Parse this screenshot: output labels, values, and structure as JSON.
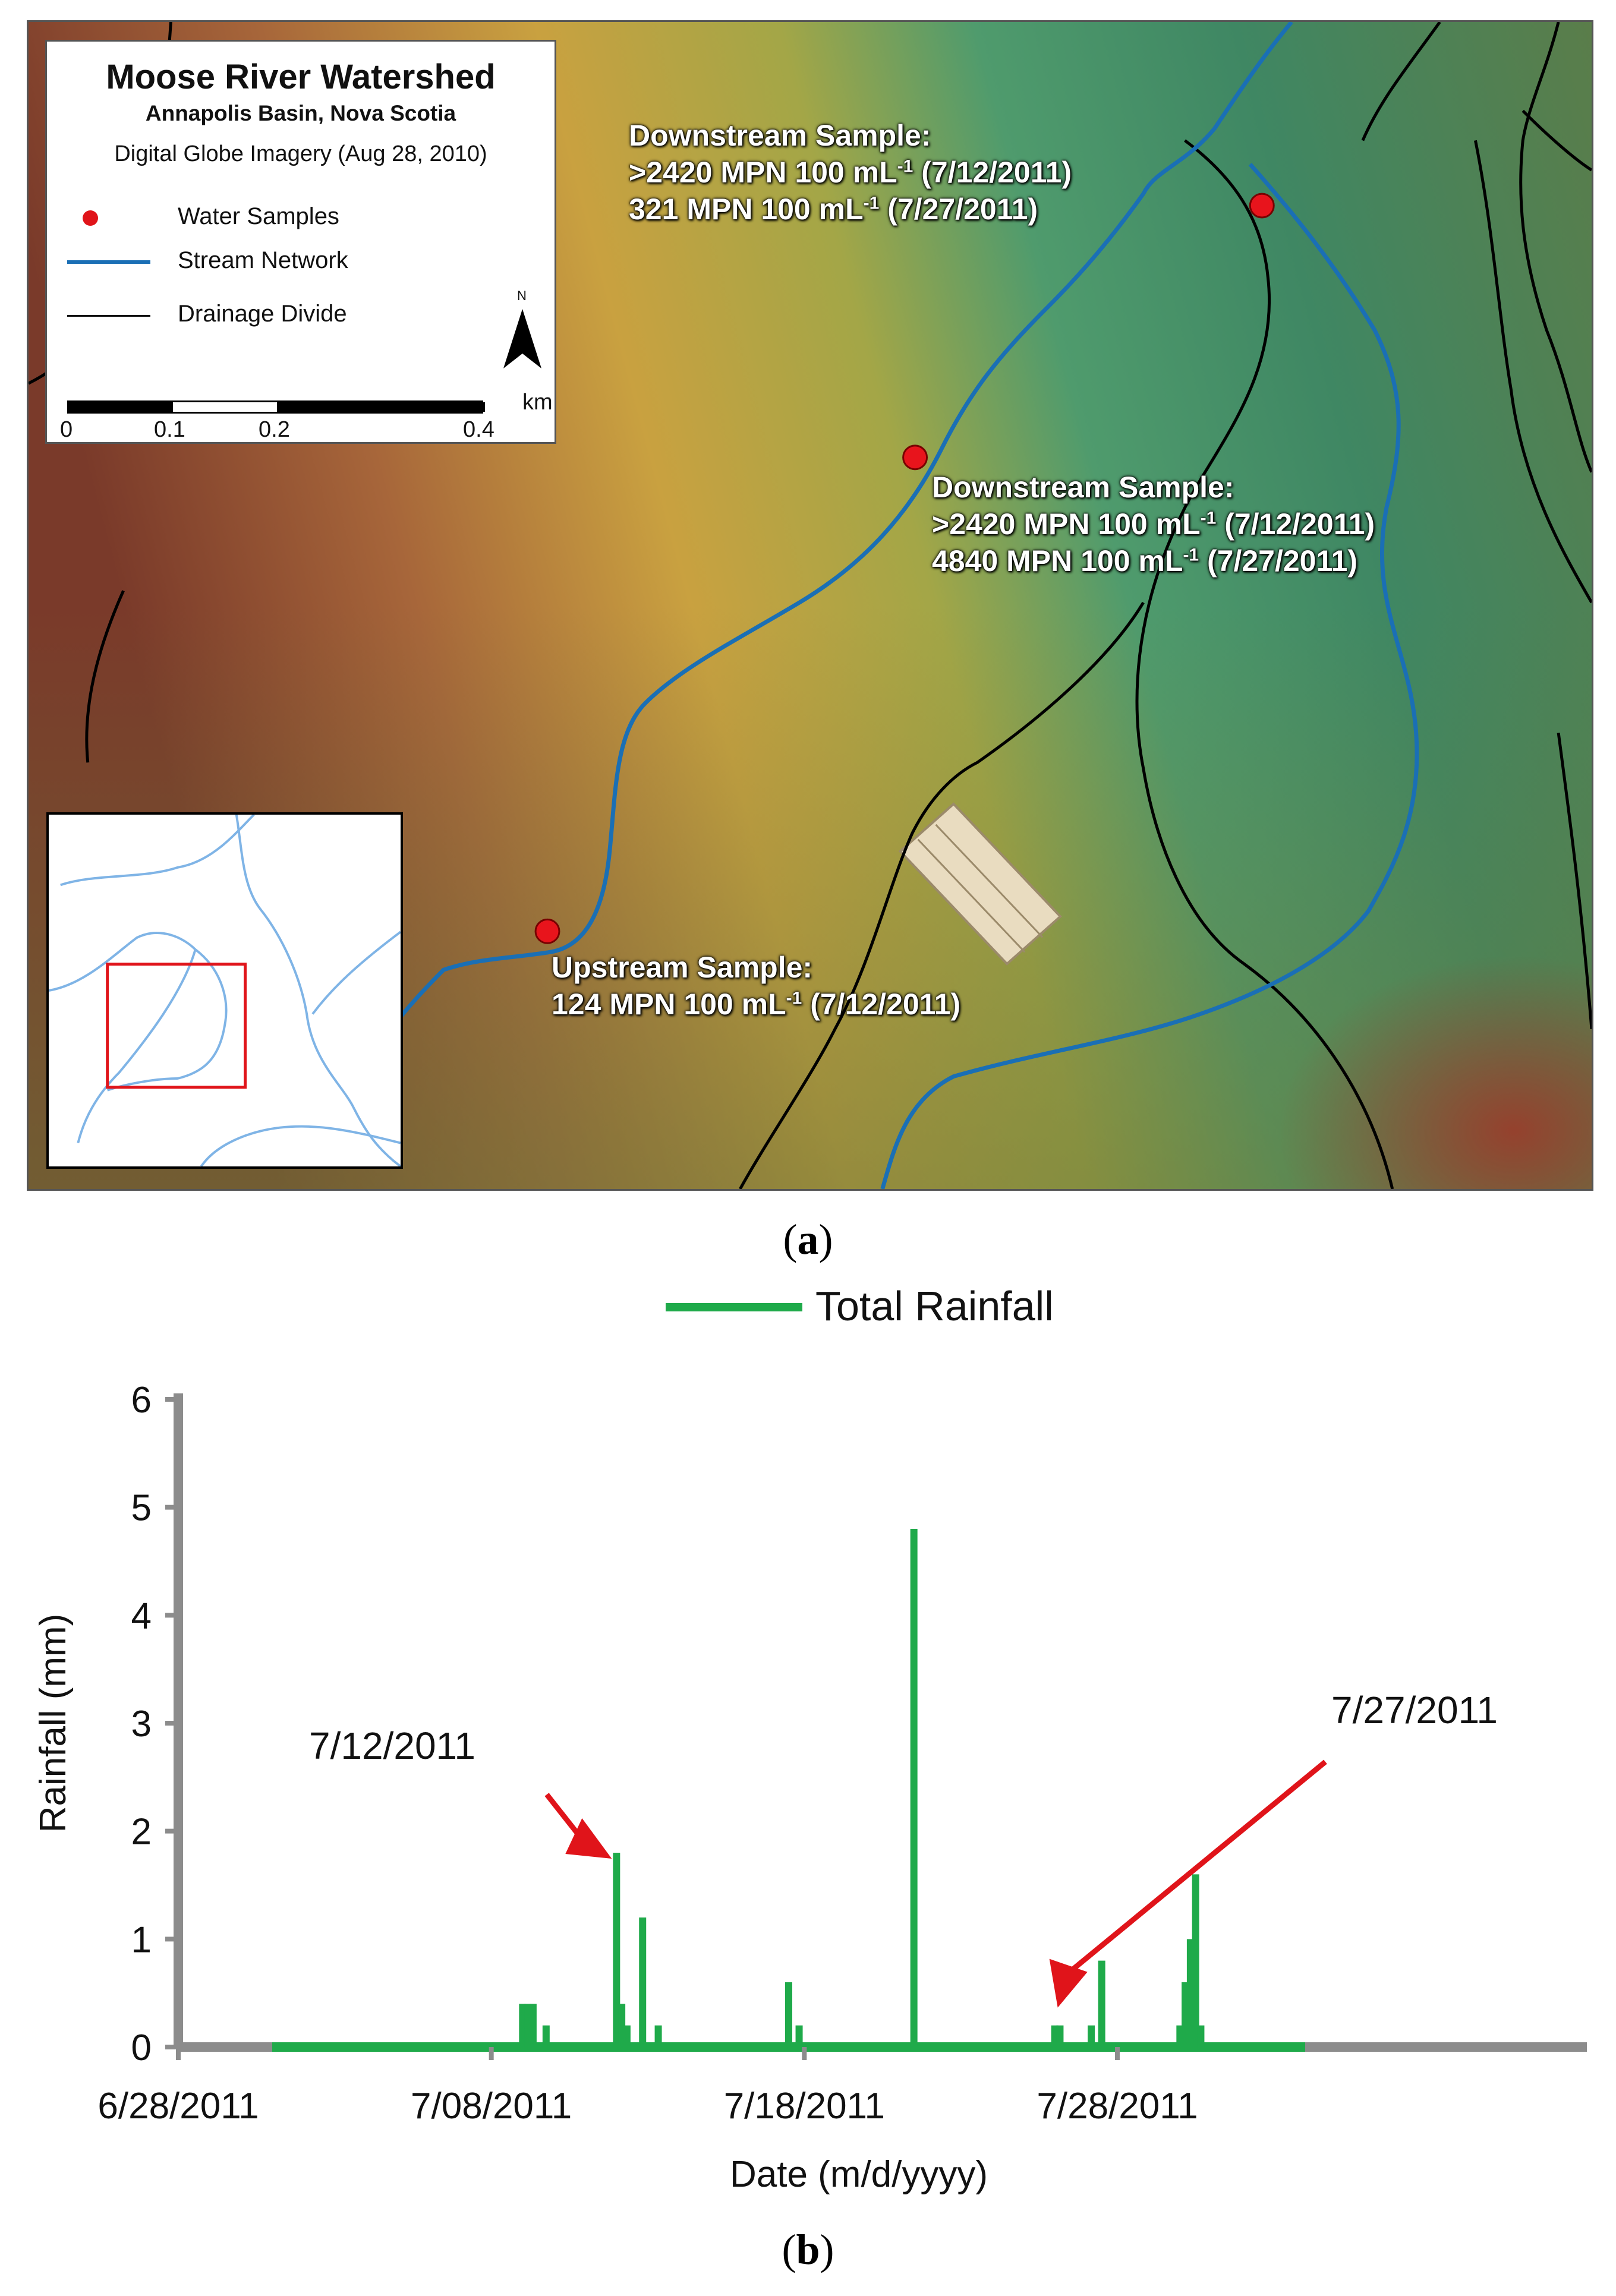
{
  "map": {
    "legend": {
      "title": "Moose River Watershed",
      "subtitle": "Annapolis Basin, Nova Scotia",
      "imagery": "Digital Globe Imagery (Aug 28, 2010)",
      "items": [
        {
          "label": "Water Samples",
          "icon": "red-dot",
          "color": "#e0141a"
        },
        {
          "label": "Stream Network",
          "icon": "blue-line",
          "color": "#1a6fb5"
        },
        {
          "label": "Drainage Divide",
          "icon": "black-line",
          "color": "#000000"
        }
      ],
      "north": "N",
      "scale": {
        "ticks": [
          "0",
          "0.1",
          "0.2",
          "0.4"
        ],
        "unit": "km"
      }
    },
    "annotations": [
      {
        "title": "Downstream Sample:",
        "lines": [
          {
            "value": ">2420 MPN 100 mL",
            "sup": "-1",
            "date": " (7/12/2011)"
          },
          {
            "value": "321 MPN 100 mL",
            "sup": "-1",
            "date": "  (7/27/2011)"
          }
        ]
      },
      {
        "title": "Downstream Sample:",
        "lines": [
          {
            "value": ">2420 MPN 100 mL",
            "sup": "-1",
            "date": " (7/12/2011)"
          },
          {
            "value": "4840 MPN 100 mL",
            "sup": "-1",
            "date": "  (7/27/2011)"
          }
        ]
      },
      {
        "title": "Upstream Sample:",
        "lines": [
          {
            "value": "124 MPN 100 mL",
            "sup": "-1",
            "date": " (7/12/2011)"
          }
        ]
      }
    ]
  },
  "panel_labels": {
    "a": "a",
    "b": "b"
  },
  "chart_data": {
    "type": "bar",
    "title": "",
    "legend": [
      {
        "name": "Total Rainfall",
        "color": "#1faa4a"
      }
    ],
    "legend_position": "top-center",
    "xlabel": "Date (m/d/yyyy)",
    "ylabel": "Rainfall (mm)",
    "ylim": [
      0,
      6
    ],
    "yticks": [
      "0",
      "1",
      "2",
      "3",
      "4",
      "5",
      "6"
    ],
    "xlim": [
      "2011-06-28",
      "2011-08-12"
    ],
    "xticks": [
      {
        "date": "2011-06-28",
        "label": "6/28/2011"
      },
      {
        "date": "2011-07-08",
        "label": "7/08/2011"
      },
      {
        "date": "2011-07-18",
        "label": "7/18/2011"
      },
      {
        "date": "2011-07-28",
        "label": "7/28/2011"
      }
    ],
    "grid": false,
    "record_start": "2011-07-01",
    "record_end": "2011-08-03",
    "series": [
      {
        "name": "Total Rainfall",
        "color": "#1faa4a",
        "points": [
          {
            "date": "2011-07-09T00:00",
            "value": 0.4
          },
          {
            "date": "2011-07-09T04:00",
            "value": 0.4
          },
          {
            "date": "2011-07-09T08:00",
            "value": 0.4
          },
          {
            "date": "2011-07-09T18:00",
            "value": 0.2
          },
          {
            "date": "2011-07-12T00:00",
            "value": 1.8
          },
          {
            "date": "2011-07-12T04:00",
            "value": 0.4
          },
          {
            "date": "2011-07-12T08:00",
            "value": 0.2
          },
          {
            "date": "2011-07-12T20:00",
            "value": 1.2
          },
          {
            "date": "2011-07-13T08:00",
            "value": 0.2
          },
          {
            "date": "2011-07-17T12:00",
            "value": 0.6
          },
          {
            "date": "2011-07-17T20:00",
            "value": 0.2
          },
          {
            "date": "2011-07-21T12:00",
            "value": 4.8
          },
          {
            "date": "2011-07-26T00:00",
            "value": 0.2
          },
          {
            "date": "2011-07-26T04:00",
            "value": 0.2
          },
          {
            "date": "2011-07-27T04:00",
            "value": 0.2
          },
          {
            "date": "2011-07-27T12:00",
            "value": 0.8
          },
          {
            "date": "2011-07-30T00:00",
            "value": 0.2
          },
          {
            "date": "2011-07-30T04:00",
            "value": 0.6
          },
          {
            "date": "2011-07-30T08:00",
            "value": 1.0
          },
          {
            "date": "2011-07-30T12:00",
            "value": 1.6
          },
          {
            "date": "2011-07-30T16:00",
            "value": 0.2
          }
        ]
      }
    ],
    "annotations": [
      {
        "text": "7/12/2011",
        "points_to": "2011-07-12T00:00",
        "value": 1.8,
        "color": "#e0141a"
      },
      {
        "text": "7/27/2011",
        "points_to": "2011-07-26T00:00",
        "value": 0.2,
        "color": "#e0141a"
      }
    ]
  }
}
